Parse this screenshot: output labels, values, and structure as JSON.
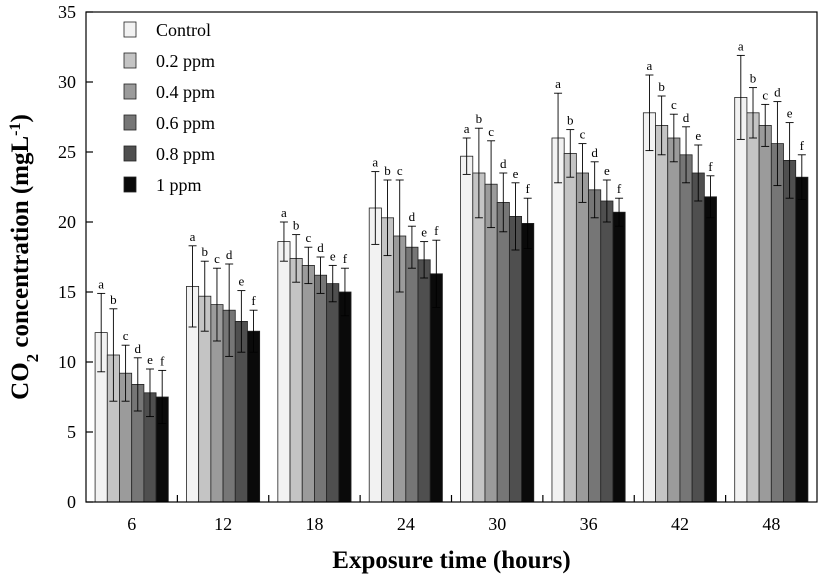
{
  "chart_data": {
    "type": "bar",
    "xlabel": "Exposure time (hours)",
    "ylabel": {
      "base": "CO",
      "sub": "2",
      "mid": " concentration (mgL",
      "sup": "-1",
      "end": ")"
    },
    "ylim": [
      0,
      35
    ],
    "yticks": [
      "0",
      "5",
      "10",
      "15",
      "20",
      "25",
      "30",
      "35"
    ],
    "categories": [
      "6",
      "12",
      "18",
      "24",
      "30",
      "36",
      "42",
      "48"
    ],
    "legend_position": "top-left",
    "grid": false,
    "series": [
      {
        "name": "Control",
        "color": "#f2f2f2",
        "values": [
          12.1,
          15.4,
          18.6,
          21.0,
          24.7,
          26.0,
          27.8,
          28.9
        ],
        "errors": [
          2.8,
          2.9,
          1.4,
          2.6,
          1.3,
          3.2,
          2.7,
          3.0
        ],
        "letters": [
          "a",
          "a",
          "a",
          "a",
          "a",
          "a",
          "a",
          "a"
        ]
      },
      {
        "name": "0.2 ppm",
        "color": "#c4c4c4",
        "values": [
          10.5,
          14.7,
          17.4,
          20.3,
          23.5,
          24.9,
          26.9,
          27.8
        ],
        "errors": [
          3.3,
          2.5,
          1.7,
          2.7,
          3.2,
          1.7,
          2.1,
          1.8
        ],
        "letters": [
          "b",
          "b",
          "b",
          "b",
          "b",
          "b",
          "b",
          "b"
        ]
      },
      {
        "name": "0.4 ppm",
        "color": "#9b9b9b",
        "values": [
          9.2,
          14.1,
          16.9,
          19.0,
          22.7,
          23.5,
          26.0,
          26.9
        ],
        "errors": [
          2.0,
          2.6,
          1.3,
          4.0,
          3.1,
          2.1,
          1.7,
          1.5
        ],
        "letters": [
          "c",
          "c",
          "c",
          "c",
          "c",
          "c",
          "c",
          "c"
        ]
      },
      {
        "name": "0.6 ppm",
        "color": "#767676",
        "values": [
          8.4,
          13.7,
          16.2,
          18.2,
          21.4,
          22.3,
          24.8,
          25.6
        ],
        "errors": [
          1.9,
          3.3,
          1.3,
          1.5,
          2.1,
          2.0,
          2.0,
          3.0
        ],
        "letters": [
          "d",
          "d",
          "d",
          "d",
          "d",
          "d",
          "d",
          "d"
        ]
      },
      {
        "name": "0.8 ppm",
        "color": "#4f4f4f",
        "values": [
          7.8,
          12.9,
          15.6,
          17.3,
          20.4,
          21.5,
          23.5,
          24.4
        ],
        "errors": [
          1.7,
          2.2,
          1.3,
          1.3,
          2.4,
          1.5,
          2.0,
          2.7
        ],
        "letters": [
          "e",
          "e",
          "e",
          "e",
          "e",
          "e",
          "e",
          "e"
        ]
      },
      {
        "name": "1 ppm",
        "color": "#0a0a0a",
        "values": [
          7.5,
          12.2,
          15.0,
          16.3,
          19.9,
          20.7,
          21.8,
          23.2
        ],
        "errors": [
          1.9,
          1.5,
          1.7,
          2.4,
          1.8,
          1.0,
          1.5,
          1.6
        ],
        "letters": [
          "f",
          "f",
          "f",
          "f",
          "f",
          "f",
          "f",
          "f"
        ]
      }
    ]
  }
}
